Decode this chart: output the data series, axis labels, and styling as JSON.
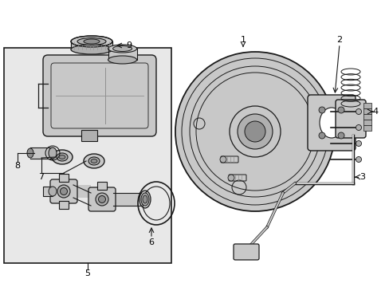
{
  "figsize": [
    4.89,
    3.6
  ],
  "dpi": 100,
  "bg": "#ffffff",
  "box_bg": "#e8e8e8",
  "lc": "#1a1a1a",
  "gray1": "#c8c8c8",
  "gray2": "#b0b0b0",
  "gray3": "#909090"
}
